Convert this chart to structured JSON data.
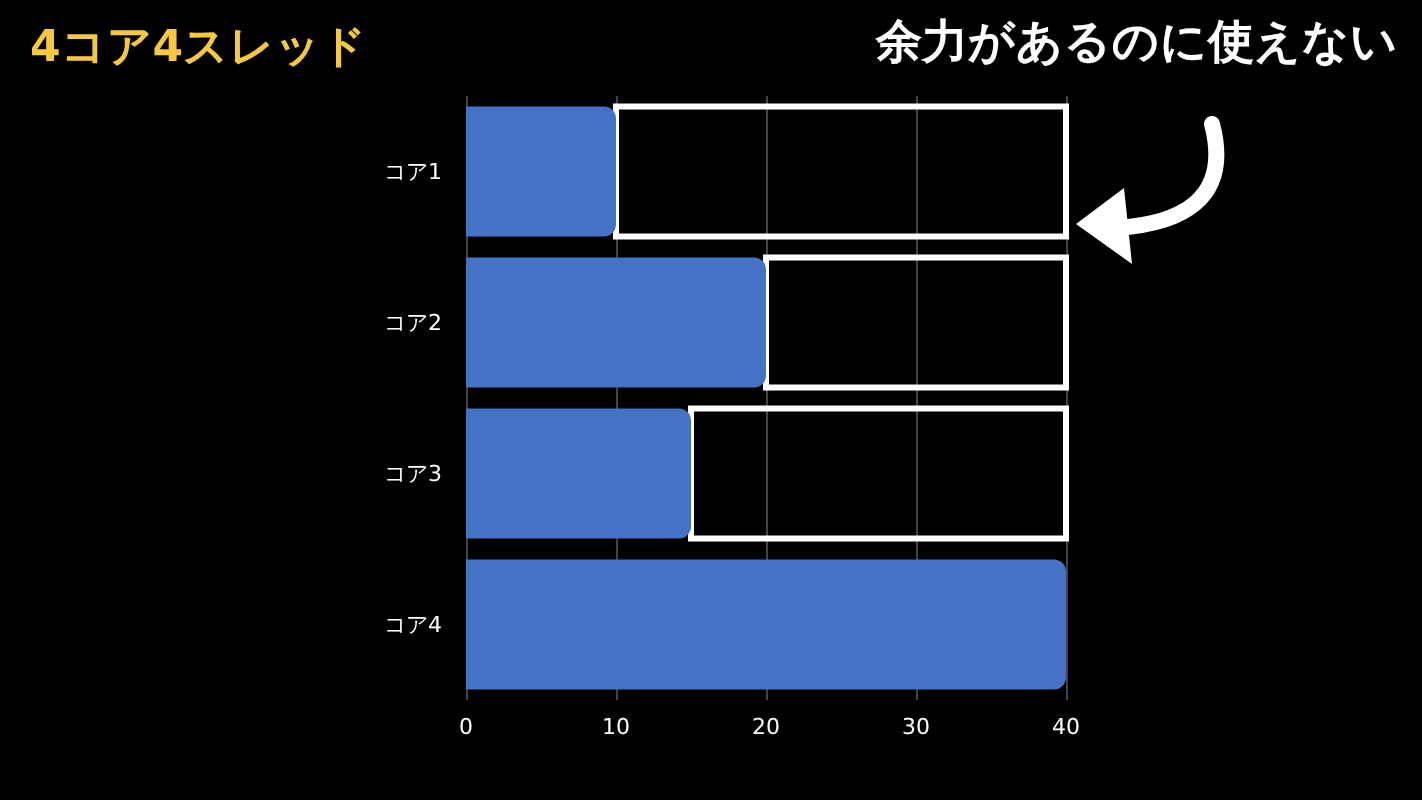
{
  "chart_data": {
    "type": "bar",
    "title": "4コア4スレッド",
    "orientation": "horizontal",
    "stacked": true,
    "categories": [
      "コア1",
      "コア2",
      "コア3",
      "コア4"
    ],
    "series": [
      {
        "color": "#4472c4",
        "values": [
          10,
          20,
          15,
          40
        ]
      },
      {
        "color": "#ffffff",
        "values": [
          30,
          20,
          25,
          null
        ]
      }
    ],
    "xlim": [
      0,
      40
    ],
    "xticks": [
      0,
      10,
      20,
      30,
      40
    ],
    "grid": "x",
    "annotations": [
      "余力があるのに使えない"
    ]
  }
}
